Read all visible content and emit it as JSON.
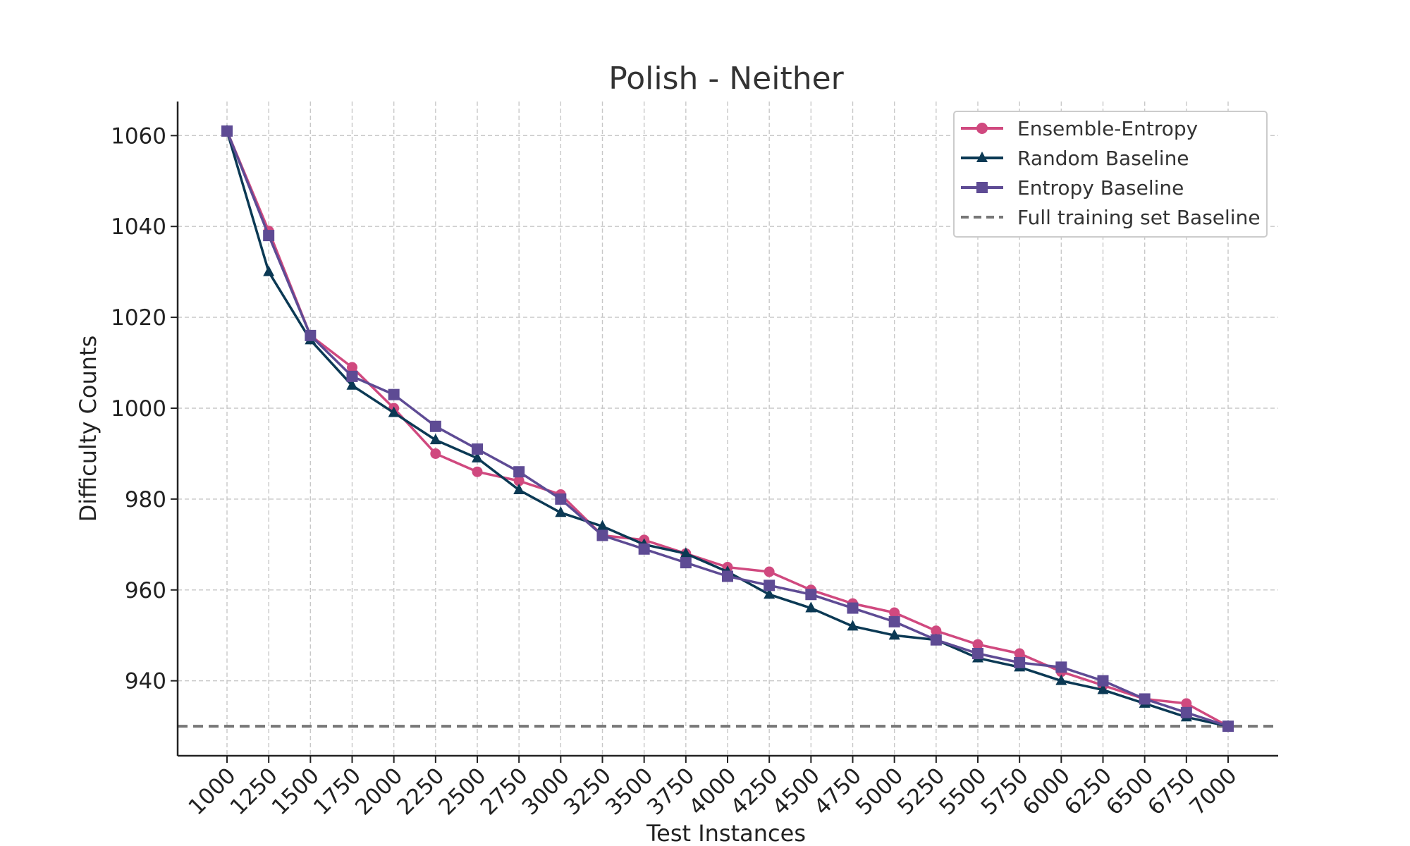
{
  "chart_data": {
    "type": "line",
    "title": "Polish - Neither",
    "xlabel": "Test Instances",
    "ylabel": "Difficulty Counts",
    "x": [
      1000,
      1250,
      1500,
      1750,
      2000,
      2250,
      2500,
      2750,
      3000,
      3250,
      3500,
      3750,
      4000,
      4250,
      4500,
      4750,
      5000,
      5250,
      5500,
      5750,
      6000,
      6250,
      6500,
      6750,
      7000
    ],
    "x_tick_labels": [
      "1000",
      "1250",
      "1500",
      "1750",
      "2000",
      "2250",
      "2500",
      "2750",
      "3000",
      "3250",
      "3500",
      "3750",
      "4000",
      "4250",
      "4500",
      "4750",
      "5000",
      "5250",
      "5500",
      "5750",
      "6000",
      "6250",
      "6500",
      "6750",
      "7000"
    ],
    "y_ticks": [
      940,
      960,
      980,
      1000,
      1020,
      1040,
      1060
    ],
    "y_tick_labels": [
      "940",
      "960",
      "980",
      "1000",
      "1020",
      "1040",
      "1060"
    ],
    "ylim": [
      923.5,
      1067.5
    ],
    "grid": true,
    "legend_position": "top-right",
    "series": [
      {
        "name": "Ensemble-Entropy",
        "color": "#d0497f",
        "marker": "circle",
        "values": [
          1061,
          1039,
          1016,
          1009,
          1000,
          990,
          986,
          984,
          981,
          972,
          971,
          968,
          965,
          964,
          960,
          957,
          955,
          951,
          948,
          946,
          942,
          939,
          936,
          935,
          930
        ]
      },
      {
        "name": "Random Baseline",
        "color": "#0b3954",
        "marker": "triangle",
        "values": [
          1061,
          1030,
          1015,
          1005,
          999,
          993,
          989,
          982,
          977,
          974,
          970,
          968,
          964,
          959,
          956,
          952,
          950,
          949,
          945,
          943,
          940,
          938,
          935,
          932,
          930
        ]
      },
      {
        "name": "Entropy Baseline",
        "color": "#5e4b94",
        "marker": "square",
        "values": [
          1061,
          1038,
          1016,
          1007,
          1003,
          996,
          991,
          986,
          980,
          972,
          969,
          966,
          963,
          961,
          959,
          956,
          953,
          949,
          946,
          944,
          943,
          940,
          936,
          933,
          930
        ]
      }
    ],
    "reference_line": {
      "name": "Full training set Baseline",
      "color": "#777777",
      "style": "dashed",
      "value": 930
    }
  }
}
